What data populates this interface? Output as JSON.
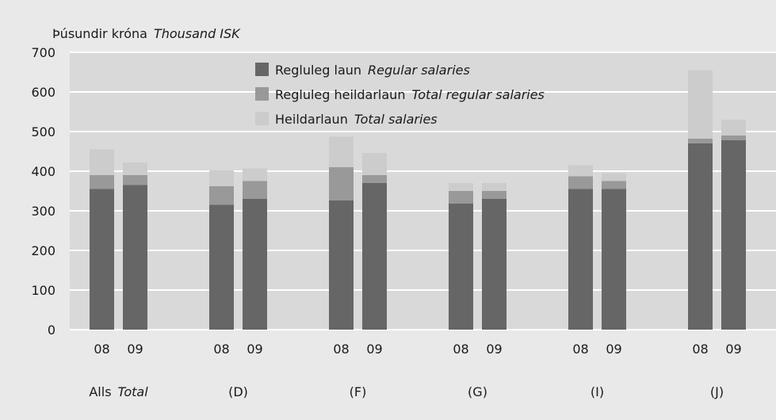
{
  "chart_data": {
    "type": "bar",
    "stacked": true,
    "unit_label": "Þúsundir króna",
    "unit_label_en": "Thousand ISK",
    "ylim": [
      0,
      700
    ],
    "yticks": [
      0,
      100,
      200,
      300,
      400,
      500,
      600,
      700
    ],
    "grid": true,
    "legend_position": "top-center",
    "groups": [
      {
        "label": "Alls",
        "label_en": "Total",
        "bars": [
          {
            "x": "08",
            "values": [
              355,
              35,
              65
            ]
          },
          {
            "x": "09",
            "values": [
              365,
              25,
              32
            ]
          }
        ]
      },
      {
        "label": "(D)",
        "label_en": "",
        "bars": [
          {
            "x": "08",
            "values": [
              315,
              47,
              40
            ]
          },
          {
            "x": "09",
            "values": [
              330,
              45,
              32
            ]
          }
        ]
      },
      {
        "label": "(F)",
        "label_en": "",
        "bars": [
          {
            "x": "08",
            "values": [
              326,
              84,
              77
            ]
          },
          {
            "x": "09",
            "values": [
              370,
              20,
              56
            ]
          }
        ]
      },
      {
        "label": "(G)",
        "label_en": "",
        "bars": [
          {
            "x": "08",
            "values": [
              318,
              32,
              20
            ]
          },
          {
            "x": "09",
            "values": [
              330,
              20,
              20
            ]
          }
        ]
      },
      {
        "label": "(I)",
        "label_en": "",
        "bars": [
          {
            "x": "08",
            "values": [
              355,
              32,
              28
            ]
          },
          {
            "x": "09",
            "values": [
              355,
              20,
              20
            ]
          }
        ]
      },
      {
        "label": "(J)",
        "label_en": "",
        "bars": [
          {
            "x": "08",
            "values": [
              470,
              12,
              173
            ]
          },
          {
            "x": "09",
            "values": [
              478,
              12,
              40
            ]
          }
        ]
      }
    ],
    "series": [
      {
        "name": "Regluleg laun",
        "name_en": "Regular salaries",
        "color": "#666666"
      },
      {
        "name": "Regluleg heildarlaun",
        "name_en": "Total regular salaries",
        "color": "#999999"
      },
      {
        "name": "Heildarlaun",
        "name_en": "Total salaries",
        "color": "#cccccc"
      }
    ],
    "colors": {
      "background": "#e9e9e9",
      "plot_background": "#d9d9d9",
      "grid": "#ffffff"
    }
  }
}
